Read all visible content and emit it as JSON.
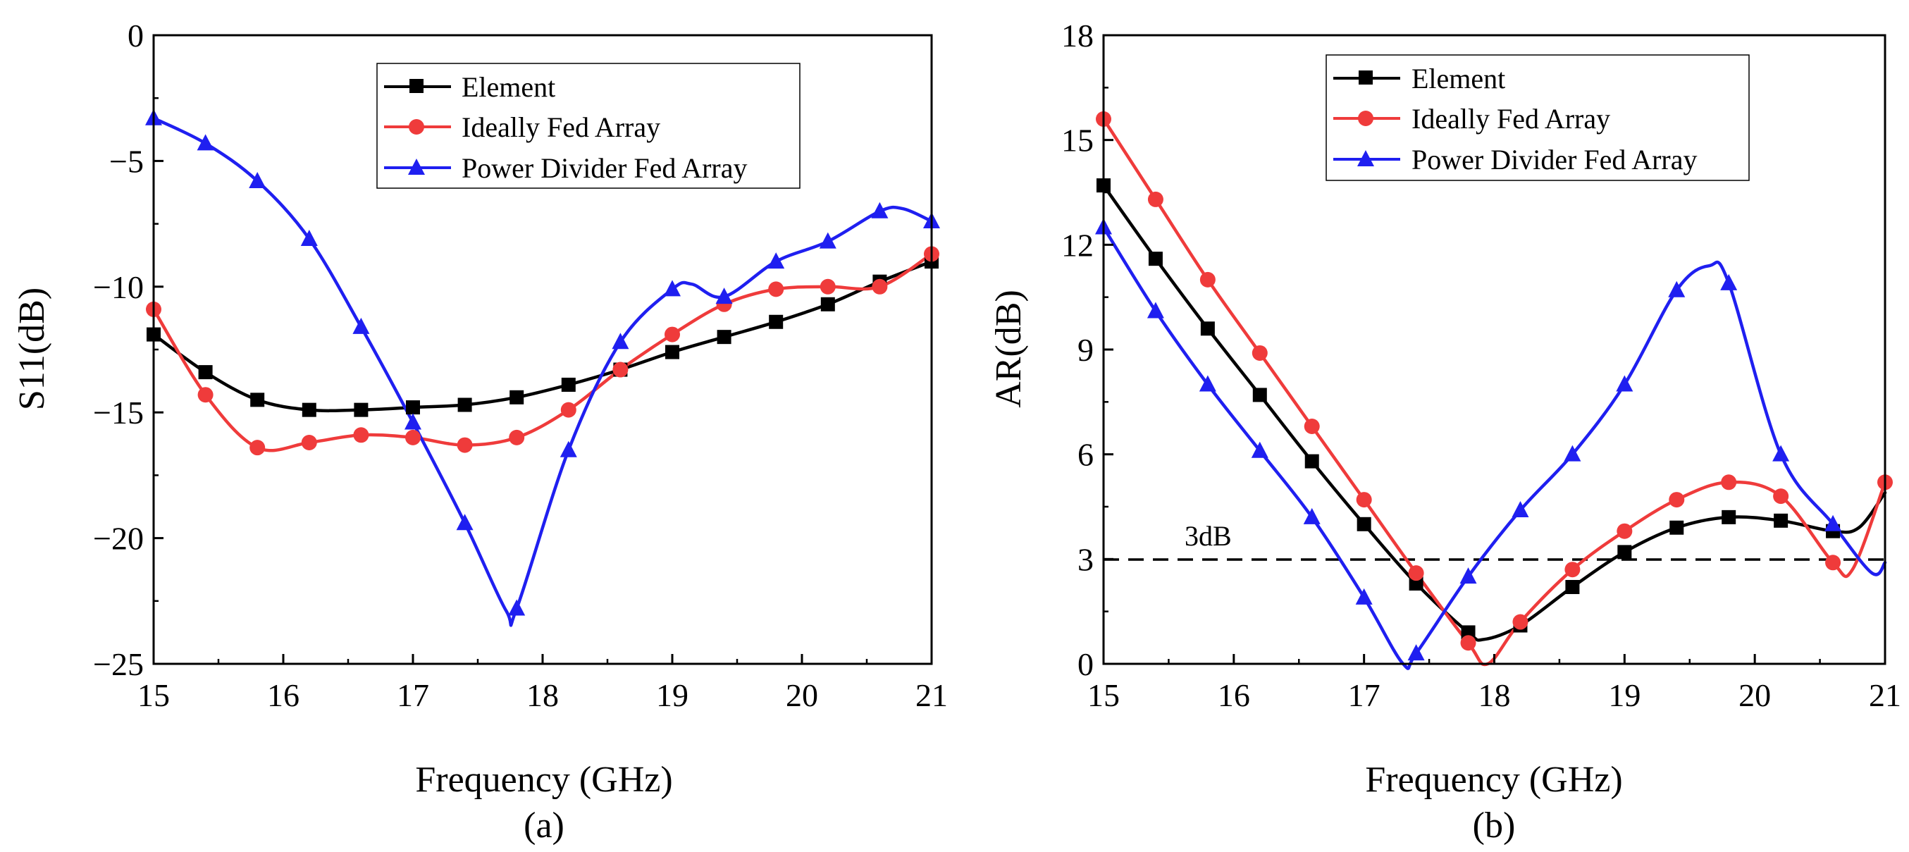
{
  "chart_data": [
    {
      "type": "line",
      "caption": "(a)",
      "xlabel": "Frequency (GHz)",
      "ylabel": "S11(dB)",
      "xlim": [
        15,
        21
      ],
      "ylim": [
        -25,
        0
      ],
      "xticks": [
        15,
        16,
        17,
        18,
        19,
        20,
        21
      ],
      "yticks": [
        0,
        -5,
        -10,
        -15,
        -20,
        -25
      ],
      "xtick_labels": [
        "15",
        "16",
        "17",
        "18",
        "19",
        "20",
        "21"
      ],
      "ytick_labels": [
        "0",
        "−5",
        "−10",
        "−15",
        "−20",
        "−25"
      ],
      "legend_position": "top-right",
      "series": [
        {
          "name": "Element",
          "color": "#000000",
          "marker": "square",
          "x": [
            15,
            15.4,
            15.8,
            16.2,
            16.6,
            17,
            17.4,
            17.8,
            18.2,
            18.6,
            19,
            19.4,
            19.8,
            20.2,
            20.6,
            21
          ],
          "y": [
            -11.9,
            -13.4,
            -14.5,
            -14.9,
            -14.9,
            -14.8,
            -14.7,
            -14.4,
            -13.9,
            -13.3,
            -12.6,
            -12.0,
            -11.4,
            -10.7,
            -9.8,
            -9.0
          ],
          "markers_x": [
            15,
            15.4,
            15.8,
            16.2,
            16.6,
            17,
            17.4,
            17.8,
            18.2,
            18.6,
            19,
            19.4,
            19.8,
            20.2,
            20.6,
            21
          ],
          "markers_y": [
            -11.9,
            -13.4,
            -14.5,
            -14.9,
            -14.9,
            -14.8,
            -14.7,
            -14.4,
            -13.9,
            -13.3,
            -12.6,
            -12.0,
            -11.4,
            -10.7,
            -9.8,
            -9.0
          ]
        },
        {
          "name": "Ideally Fed Array",
          "color": "#ef3b3b",
          "marker": "circle",
          "x": [
            15,
            15.4,
            15.8,
            16.2,
            16.6,
            17,
            17.4,
            17.8,
            18.2,
            18.6,
            19,
            19.4,
            19.8,
            20.2,
            20.6,
            21
          ],
          "y": [
            -10.9,
            -14.3,
            -16.4,
            -16.2,
            -15.9,
            -16.0,
            -16.3,
            -16.0,
            -14.9,
            -13.3,
            -11.9,
            -10.7,
            -10.1,
            -10.0,
            -10.0,
            -8.7
          ],
          "markers_x": [
            15,
            15.4,
            15.8,
            16.2,
            16.6,
            17,
            17.4,
            17.8,
            18.2,
            18.6,
            19,
            19.4,
            19.8,
            20.2,
            20.6,
            21
          ],
          "markers_y": [
            -10.9,
            -14.3,
            -16.4,
            -16.2,
            -15.9,
            -16.0,
            -16.3,
            -16.0,
            -14.9,
            -13.3,
            -11.9,
            -10.7,
            -10.1,
            -10.0,
            -10.0,
            -8.7
          ]
        },
        {
          "name": "Power Divider Fed Array",
          "color": "#1f1ff0",
          "marker": "triangle",
          "x": [
            15,
            15.4,
            15.8,
            16.2,
            16.6,
            17,
            17.4,
            17.72,
            17.8,
            18.2,
            18.6,
            19,
            19.15,
            19.4,
            19.8,
            20.2,
            20.6,
            20.78,
            21
          ],
          "y": [
            -3.3,
            -4.3,
            -5.8,
            -8.1,
            -11.6,
            -15.4,
            -19.4,
            -22.9,
            -22.8,
            -16.5,
            -12.2,
            -10.1,
            -9.9,
            -10.4,
            -9.0,
            -8.2,
            -7.0,
            -6.9,
            -7.4
          ],
          "markers_x": [
            15,
            15.4,
            15.8,
            16.2,
            16.6,
            17,
            17.4,
            17.8,
            18.2,
            18.6,
            19,
            19.4,
            19.8,
            20.2,
            20.6,
            21
          ],
          "markers_y": [
            -3.3,
            -4.3,
            -5.8,
            -8.1,
            -11.6,
            -15.4,
            -19.4,
            -22.8,
            -16.5,
            -12.2,
            -10.1,
            -10.4,
            -9.0,
            -8.2,
            -7.0,
            -7.4
          ]
        }
      ]
    },
    {
      "type": "line",
      "caption": "(b)",
      "xlabel": "Frequency (GHz)",
      "ylabel": "AR(dB)",
      "xlim": [
        15,
        21
      ],
      "ylim": [
        0,
        18
      ],
      "xticks": [
        15,
        16,
        17,
        18,
        19,
        20,
        21
      ],
      "yticks": [
        0,
        3,
        6,
        9,
        12,
        15,
        18
      ],
      "xtick_labels": [
        "15",
        "16",
        "17",
        "18",
        "19",
        "20",
        "21"
      ],
      "ytick_labels": [
        "0",
        "3",
        "6",
        "9",
        "12",
        "15",
        "18"
      ],
      "legend_position": "top-center",
      "reference_line": {
        "y": 3,
        "label": "3dB",
        "style": "dashed"
      },
      "series": [
        {
          "name": "Element",
          "color": "#000000",
          "marker": "square",
          "x": [
            15,
            15.4,
            15.8,
            16.2,
            16.6,
            17,
            17.4,
            17.8,
            17.92,
            18.2,
            18.6,
            19,
            19.4,
            19.8,
            20.2,
            20.6,
            20.8,
            21
          ],
          "y": [
            13.7,
            11.6,
            9.6,
            7.7,
            5.8,
            4.0,
            2.3,
            0.9,
            0.7,
            1.1,
            2.2,
            3.2,
            3.9,
            4.2,
            4.1,
            3.8,
            3.9,
            4.9
          ],
          "markers_x": [
            15,
            15.4,
            15.8,
            16.2,
            16.6,
            17,
            17.4,
            17.8,
            18.2,
            18.6,
            19,
            19.4,
            19.8,
            20.2,
            20.6
          ],
          "markers_y": [
            13.7,
            11.6,
            9.6,
            7.7,
            5.8,
            4.0,
            2.3,
            0.9,
            1.1,
            2.2,
            3.2,
            3.9,
            4.2,
            4.1,
            3.8
          ]
        },
        {
          "name": "Ideally Fed Array",
          "color": "#ef3b3b",
          "marker": "circle",
          "x": [
            15,
            15.4,
            15.8,
            16.2,
            16.6,
            17,
            17.4,
            17.8,
            17.95,
            18.2,
            18.6,
            19,
            19.4,
            19.8,
            20.2,
            20.6,
            20.75,
            21
          ],
          "y": [
            15.6,
            13.3,
            11.0,
            8.9,
            6.8,
            4.7,
            2.6,
            0.6,
            0.0,
            1.2,
            2.7,
            3.8,
            4.7,
            5.2,
            4.8,
            2.9,
            2.7,
            5.2
          ],
          "markers_x": [
            15,
            15.4,
            15.8,
            16.2,
            16.6,
            17,
            17.4,
            17.8,
            18.2,
            18.6,
            19,
            19.4,
            19.8,
            20.2,
            20.6,
            21
          ],
          "markers_y": [
            15.6,
            13.3,
            11.0,
            8.9,
            6.8,
            4.7,
            2.6,
            0.6,
            1.2,
            2.7,
            3.8,
            4.7,
            5.2,
            4.8,
            2.9,
            5.2
          ]
        },
        {
          "name": "Power Divider Fed Array",
          "color": "#1f1ff0",
          "marker": "triangle",
          "x": [
            15,
            15.4,
            15.8,
            16.2,
            16.6,
            17,
            17.3,
            17.4,
            17.8,
            18.2,
            18.6,
            19,
            19.4,
            19.65,
            19.8,
            20.2,
            20.6,
            20.9,
            21
          ],
          "y": [
            12.5,
            10.1,
            8.0,
            6.1,
            4.2,
            1.9,
            0.0,
            0.3,
            2.5,
            4.4,
            6.0,
            8.0,
            10.7,
            11.4,
            10.9,
            6.0,
            4.0,
            2.6,
            2.9
          ],
          "markers_x": [
            15,
            15.4,
            15.8,
            16.2,
            16.6,
            17,
            17.4,
            17.8,
            18.2,
            18.6,
            19,
            19.4,
            19.8,
            20.2,
            20.6
          ],
          "markers_y": [
            12.5,
            10.1,
            8.0,
            6.1,
            4.2,
            1.9,
            0.3,
            2.5,
            4.4,
            6.0,
            8.0,
            10.7,
            10.9,
            6.0,
            4.0
          ]
        }
      ]
    }
  ]
}
